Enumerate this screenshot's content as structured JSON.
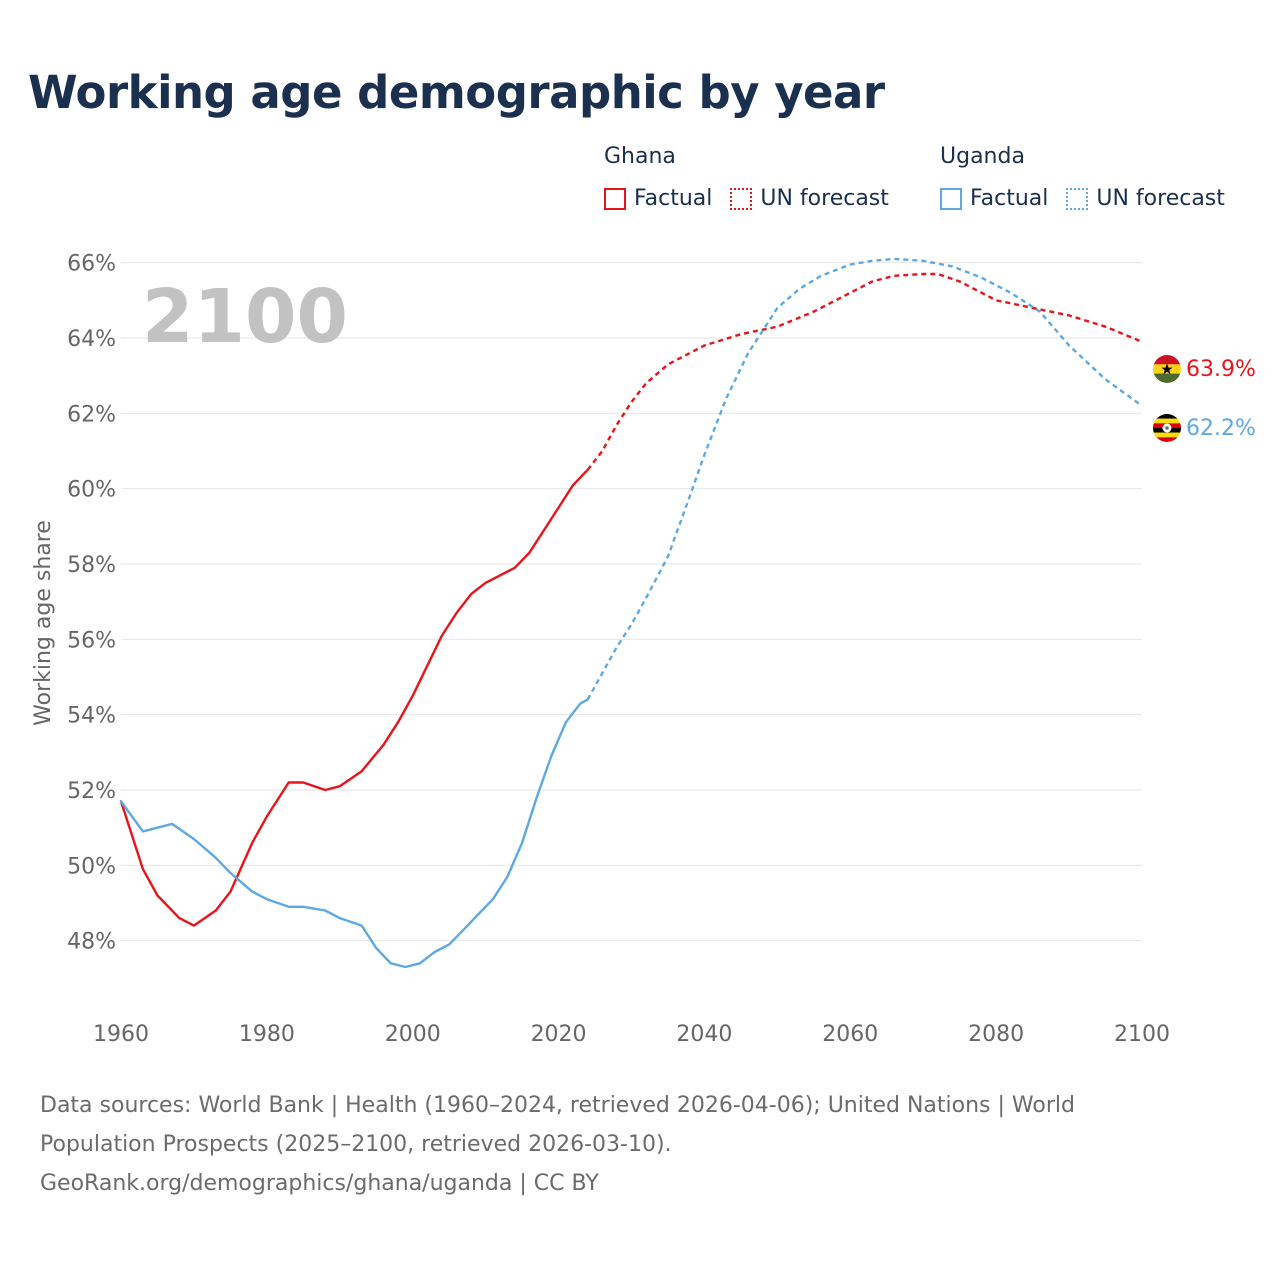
{
  "title": "Working age demographic by year",
  "legend": {
    "groups": [
      {
        "name": "Ghana",
        "color": "#e8141b",
        "factual_label": "Factual",
        "forecast_label": "UN forecast"
      },
      {
        "name": "Uganda",
        "color": "#5ea8e4",
        "factual_label": "Factual",
        "forecast_label": "UN forecast"
      }
    ]
  },
  "sources": {
    "line1": "Data sources: World Bank | Health (1960–2024, retrieved 2026-04-06); United Nations | World Population Prospects (2025–2100, retrieved 2026-03-10).",
    "line2": "GeoRank.org/demographics/ghana/uganda | CC BY"
  },
  "chart_data": {
    "type": "line",
    "title": "Working age demographic by year",
    "xlabel": "",
    "ylabel": "Working age share",
    "xlim": [
      1960,
      2100
    ],
    "ylim": [
      46,
      67
    ],
    "x_ticks": [
      1960,
      1980,
      2000,
      2020,
      2040,
      2060,
      2080,
      2100
    ],
    "y_ticks": [
      48,
      50,
      52,
      54,
      56,
      58,
      60,
      62,
      64,
      66
    ],
    "y_tick_suffix": "%",
    "grid": true,
    "year_watermark": "2100",
    "factual_until": 2024,
    "series": [
      {
        "name": "Ghana",
        "color": "#e8141b",
        "end_label": "63.9%",
        "factual": {
          "x": [
            1960,
            1963,
            1965,
            1968,
            1970,
            1973,
            1975,
            1978,
            1980,
            1983,
            1985,
            1988,
            1990,
            1993,
            1996,
            1998,
            2000,
            2002,
            2004,
            2006,
            2008,
            2010,
            2012,
            2014,
            2016,
            2018,
            2020,
            2022,
            2024
          ],
          "y": [
            51.7,
            49.9,
            49.2,
            48.6,
            48.4,
            48.8,
            49.3,
            50.6,
            51.3,
            52.2,
            52.2,
            52.0,
            52.1,
            52.5,
            53.2,
            53.8,
            54.5,
            55.3,
            56.1,
            56.7,
            57.2,
            57.5,
            57.7,
            57.9,
            58.3,
            58.9,
            59.5,
            60.1,
            60.5
          ]
        },
        "forecast": {
          "x": [
            2024,
            2026,
            2028,
            2030,
            2032,
            2035,
            2040,
            2045,
            2050,
            2055,
            2060,
            2063,
            2066,
            2070,
            2072,
            2075,
            2080,
            2085,
            2090,
            2095,
            2100
          ],
          "y": [
            60.5,
            61.0,
            61.7,
            62.3,
            62.8,
            63.3,
            63.8,
            64.1,
            64.3,
            64.7,
            65.2,
            65.5,
            65.65,
            65.7,
            65.7,
            65.5,
            65.0,
            64.8,
            64.6,
            64.3,
            63.9
          ]
        }
      },
      {
        "name": "Uganda",
        "color": "#5ea8e4",
        "end_label": "62.2%",
        "factual": {
          "x": [
            1960,
            1963,
            1965,
            1967,
            1970,
            1973,
            1975,
            1978,
            1980,
            1983,
            1985,
            1988,
            1990,
            1993,
            1995,
            1997,
            1999,
            2001,
            2003,
            2005,
            2007,
            2009,
            2011,
            2013,
            2015,
            2017,
            2019,
            2021,
            2023,
            2024
          ],
          "y": [
            51.7,
            50.9,
            51.0,
            51.1,
            50.7,
            50.2,
            49.8,
            49.3,
            49.1,
            48.9,
            48.9,
            48.8,
            48.6,
            48.4,
            47.8,
            47.4,
            47.3,
            47.4,
            47.7,
            47.9,
            48.3,
            48.7,
            49.1,
            49.7,
            50.6,
            51.8,
            52.9,
            53.8,
            54.3,
            54.4
          ]
        },
        "forecast": {
          "x": [
            2024,
            2026,
            2028,
            2030,
            2032,
            2035,
            2038,
            2040,
            2043,
            2046,
            2050,
            2053,
            2056,
            2060,
            2063,
            2066,
            2070,
            2074,
            2078,
            2082,
            2086,
            2090,
            2095,
            2100
          ],
          "y": [
            54.4,
            55.1,
            55.8,
            56.4,
            57.1,
            58.2,
            59.8,
            60.9,
            62.4,
            63.6,
            64.8,
            65.3,
            65.65,
            65.95,
            66.05,
            66.1,
            66.05,
            65.9,
            65.6,
            65.2,
            64.7,
            63.8,
            62.9,
            62.2
          ]
        }
      }
    ]
  }
}
